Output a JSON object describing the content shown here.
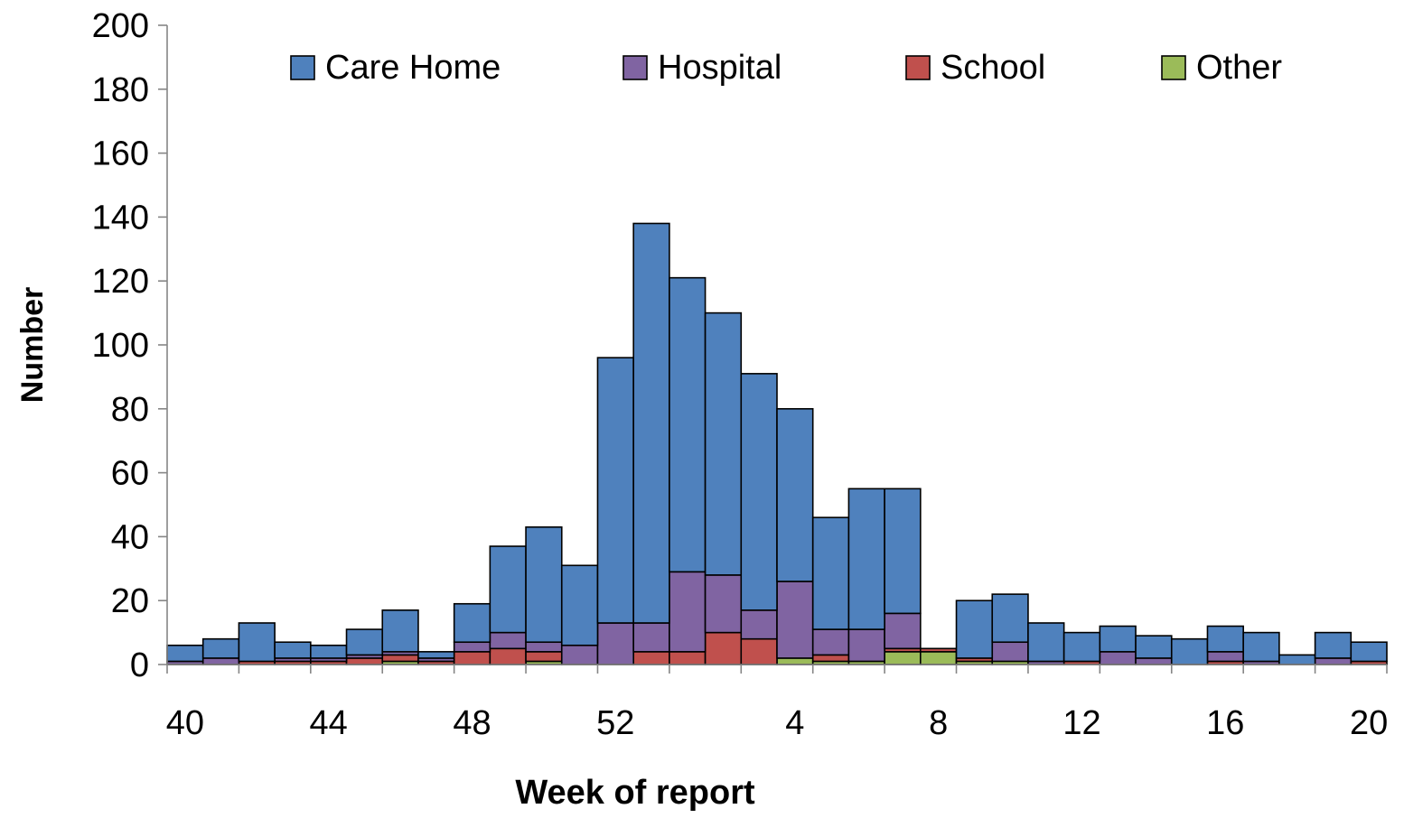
{
  "chart_data": {
    "type": "bar",
    "stacked": true,
    "xlabel": "Week of report",
    "ylabel": "Number",
    "ylim": [
      0,
      200
    ],
    "yticks": [
      0,
      20,
      40,
      60,
      80,
      100,
      120,
      140,
      160,
      180,
      200
    ],
    "categories": [
      40,
      41,
      42,
      43,
      44,
      45,
      46,
      47,
      48,
      49,
      50,
      51,
      52,
      53,
      1,
      2,
      3,
      4,
      5,
      6,
      7,
      8,
      9,
      10,
      11,
      12,
      13,
      14,
      15,
      16,
      17,
      18,
      19,
      20
    ],
    "xtick_labels": [
      {
        "index": 0,
        "label": "40"
      },
      {
        "index": 4,
        "label": "44"
      },
      {
        "index": 8,
        "label": "48"
      },
      {
        "index": 12,
        "label": "52"
      },
      {
        "index": 17,
        "label": "4"
      },
      {
        "index": 21,
        "label": "8"
      },
      {
        "index": 25,
        "label": "12"
      },
      {
        "index": 29,
        "label": "16"
      },
      {
        "index": 33,
        "label": "20"
      }
    ],
    "legend_position": "top",
    "series": [
      {
        "name": "Other",
        "color": "#9BBB59",
        "values": [
          0,
          0,
          0,
          0,
          0,
          0,
          1,
          0,
          0,
          0,
          1,
          0,
          0,
          0,
          0,
          0,
          0,
          2,
          1,
          1,
          4,
          4,
          1,
          1,
          0,
          0,
          0,
          0,
          0,
          0,
          0,
          0,
          0,
          0
        ]
      },
      {
        "name": "School",
        "color": "#C0504D",
        "values": [
          0,
          0,
          1,
          1,
          1,
          2,
          2,
          1,
          4,
          5,
          3,
          0,
          0,
          4,
          4,
          10,
          8,
          0,
          2,
          0,
          1,
          1,
          1,
          0,
          0,
          1,
          0,
          0,
          0,
          1,
          0,
          0,
          0,
          1
        ]
      },
      {
        "name": "Hospital",
        "color": "#8064A2",
        "values": [
          1,
          2,
          0,
          1,
          1,
          1,
          1,
          1,
          3,
          5,
          3,
          6,
          13,
          9,
          25,
          18,
          9,
          24,
          8,
          10,
          11,
          0,
          0,
          6,
          1,
          0,
          4,
          2,
          0,
          3,
          1,
          0,
          2,
          0
        ]
      },
      {
        "name": "Care Home",
        "color": "#4F81BD",
        "values": [
          5,
          6,
          12,
          5,
          4,
          8,
          13,
          2,
          12,
          27,
          36,
          25,
          83,
          125,
          92,
          82,
          74,
          54,
          35,
          44,
          39,
          0,
          18,
          15,
          12,
          9,
          8,
          7,
          8,
          8,
          9,
          3,
          8,
          6
        ]
      }
    ]
  },
  "legend": [
    {
      "label": "Care Home",
      "color": "#4F81BD"
    },
    {
      "label": "Hospital",
      "color": "#8064A2"
    },
    {
      "label": "School",
      "color": "#C0504D"
    },
    {
      "label": "Other",
      "color": "#9BBB59"
    }
  ]
}
